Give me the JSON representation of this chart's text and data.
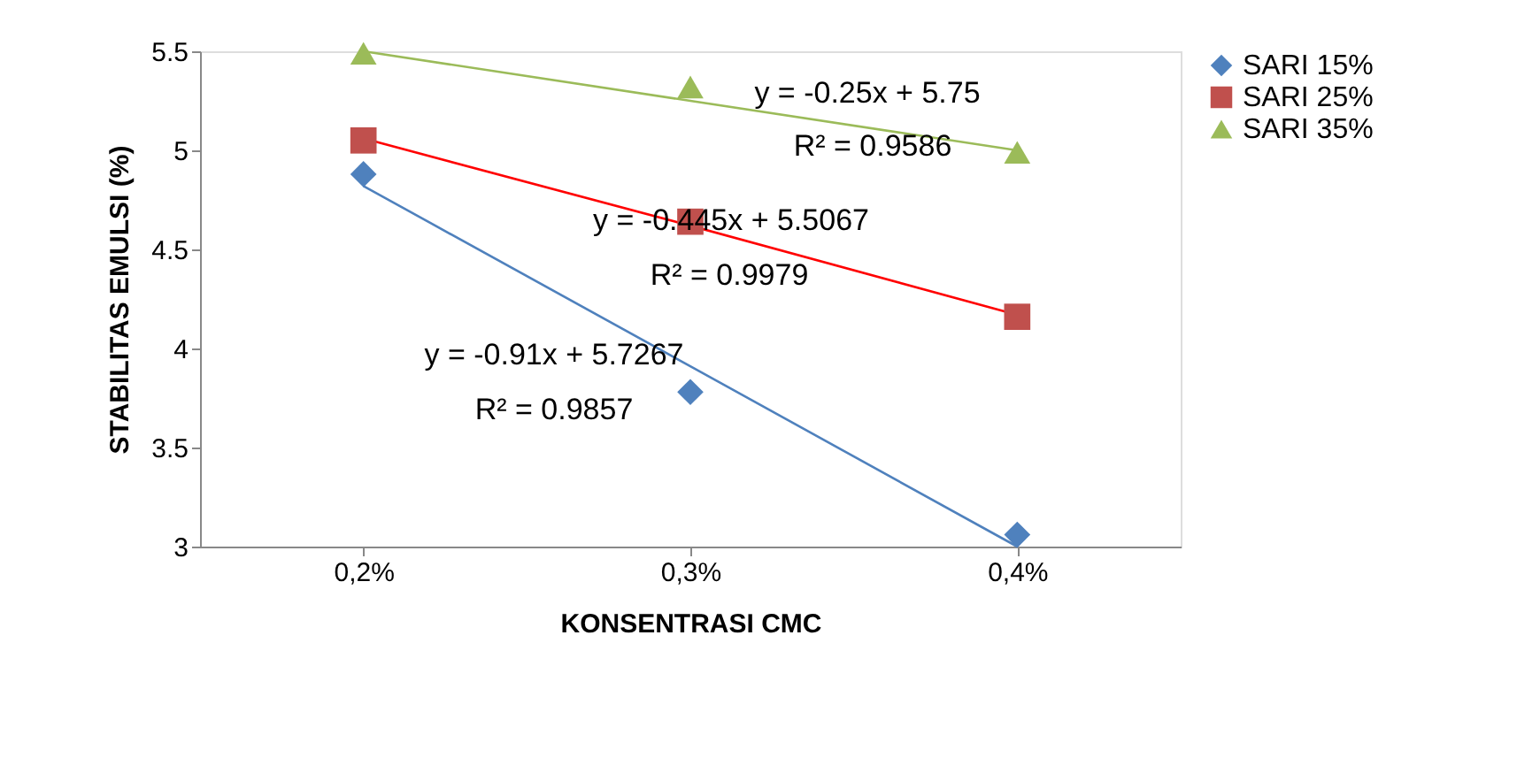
{
  "chart_data": {
    "type": "scatter",
    "xlabel": "KONSENTRASI CMC",
    "ylabel": "STABILITAS EMULSI (%)",
    "categories": [
      "0,2%",
      "0,3%",
      "0,4%"
    ],
    "series": [
      {
        "name": "SARI 15%",
        "color": "#4f81bd",
        "marker": "diamond",
        "values": [
          4.88,
          3.78,
          3.06
        ]
      },
      {
        "name": "SARI 25%",
        "color": "#c0504d",
        "marker": "square",
        "values": [
          5.05,
          4.64,
          4.16
        ]
      },
      {
        "name": "SARI 35%",
        "color": "#9bbb59",
        "marker": "triangle",
        "values": [
          5.49,
          5.32,
          4.99
        ]
      },
      {
        "type": "line",
        "color": "#4f81bd",
        "x": [
          "0,2%",
          "0,3%",
          "0,4%"
        ],
        "values": [
          4.82,
          3.91,
          3.0
        ]
      },
      {
        "type": "line",
        "color": "#ff0000",
        "x": [
          "0,2%",
          "0,3%",
          "0,4%"
        ],
        "values": [
          5.06,
          4.62,
          4.17
        ]
      },
      {
        "type": "line",
        "color": "#9bbb59",
        "x": [
          "0,2%",
          "0,3%",
          "0,4%"
        ],
        "values": [
          5.5,
          5.25,
          5.0
        ]
      }
    ],
    "ylim": [
      3,
      5.5
    ],
    "yticks": [
      3,
      3.5,
      4,
      4.5,
      5,
      5.5
    ],
    "grid": false,
    "legend": "right",
    "annotations": [
      "y = -0.25x + 5.75",
      "R² = 0.9586",
      "y = -0.445x + 5.5067",
      "R² = 0.9979",
      "y = -0.91x + 5.7267",
      "R² = 0.9857"
    ]
  }
}
